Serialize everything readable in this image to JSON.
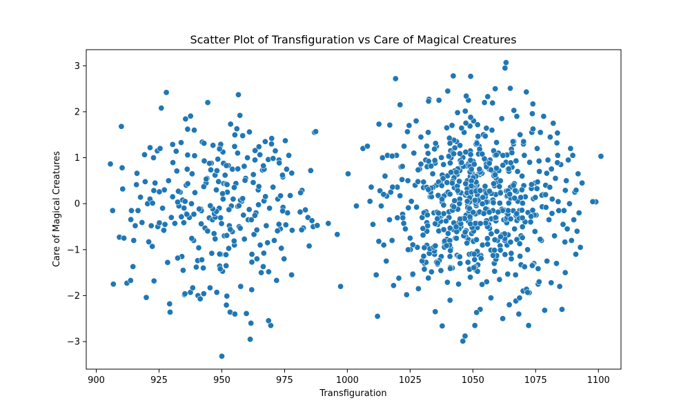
{
  "chart_data": {
    "type": "scatter",
    "title": "Scatter Plot of Transfiguration vs Care of Magical Creatures",
    "xlabel": "Transfiguration",
    "ylabel": "Care of Magical Creatures",
    "xlim": [
      896,
      1109
    ],
    "ylim": [
      -3.6,
      3.35
    ],
    "xticks": [
      900,
      925,
      950,
      975,
      1000,
      1025,
      1050,
      1075,
      1100
    ],
    "yticks": [
      -3,
      -2,
      -1,
      0,
      1,
      2,
      3
    ],
    "ytick_labels": [
      "−3",
      "−2",
      "−1",
      "0",
      "1",
      "2",
      "3"
    ],
    "grid": false,
    "legend": "none",
    "marker_color": "#1f77b4",
    "marker_edge": "#ffffff",
    "clusters": [
      {
        "count": 300,
        "x_mean": 948,
        "x_sd": 18,
        "y_mean": 0.0,
        "y_sd": 1.0
      },
      {
        "count": 700,
        "x_mean": 1052,
        "x_sd": 15,
        "y_mean": 0.0,
        "y_sd": 1.0
      }
    ],
    "points": [
      [
        906.5,
        -0.15
      ],
      [
        906.8,
        -1.75
      ],
      [
        909.2,
        -0.73
      ],
      [
        910.0,
        1.68
      ],
      [
        910.3,
        0.78
      ],
      [
        910.5,
        0.32
      ],
      [
        911.0,
        -0.75
      ],
      [
        912.2,
        -1.73
      ],
      [
        914.0,
        -0.15
      ],
      [
        914.6,
        -1.37
      ],
      [
        914.9,
        -0.8
      ],
      [
        915.5,
        -0.48
      ],
      [
        916.2,
        0.66
      ],
      [
        916.6,
        -0.15
      ],
      [
        917.6,
        0.14
      ],
      [
        918.2,
        -0.41
      ],
      [
        919.9,
        -2.04
      ],
      [
        920.4,
        0.0
      ],
      [
        920.9,
        -0.83
      ],
      [
        921.4,
        0.1
      ],
      [
        921.9,
        -0.48
      ],
      [
        922.3,
        -0.93
      ],
      [
        922.8,
        1.0
      ],
      [
        923.0,
        -1.68
      ],
      [
        923.4,
        0.45
      ],
      [
        924.3,
        1.15
      ],
      [
        924.5,
        -0.5
      ],
      [
        925.4,
        1.2
      ],
      [
        925.9,
        2.08
      ],
      [
        926.4,
        -0.1
      ],
      [
        926.9,
        -0.58
      ],
      [
        927.1,
        0.3
      ],
      [
        927.9,
        2.42
      ],
      [
        928.4,
        -1.28
      ],
      [
        928.8,
        0.5
      ],
      [
        929.2,
        -2.18
      ],
      [
        929.4,
        -2.36
      ],
      [
        929.9,
        -0.3
      ],
      [
        930.4,
        0.15
      ],
      [
        931.3,
        -0.43
      ],
      [
        931.8,
        1.14
      ],
      [
        932.1,
        0.71
      ],
      [
        932.9,
        -0.05
      ],
      [
        933.4,
        0.25
      ],
      [
        933.8,
        1.33
      ],
      [
        934.1,
        -1.15
      ],
      [
        934.6,
        -1.45
      ],
      [
        935.1,
        -1.98
      ],
      [
        935.8,
        0.4
      ],
      [
        936.2,
        0.75
      ],
      [
        937.1,
        -0.3
      ],
      [
        937.5,
        -1.93
      ],
      [
        937.9,
        0.0
      ],
      [
        938.4,
        -1.83
      ],
      [
        938.8,
        -0.8
      ],
      [
        939.0,
        1.6
      ],
      [
        939.3,
        0.24
      ],
      [
        939.8,
        -1.38
      ],
      [
        940.5,
        -2.0
      ],
      [
        940.8,
        -0.96
      ],
      [
        941.4,
        -2.07
      ],
      [
        941.7,
        -0.12
      ],
      [
        942.2,
        1.34
      ],
      [
        942.6,
        -1.4
      ],
      [
        943.0,
        0.93
      ],
      [
        943.3,
        -0.53
      ],
      [
        943.7,
        0.45
      ],
      [
        944.1,
        0.55
      ],
      [
        944.4,
        2.2
      ],
      [
        945.0,
        -0.31
      ],
      [
        945.3,
        -1.83
      ],
      [
        945.8,
        0.88
      ],
      [
        946.0,
        -1.08
      ],
      [
        946.3,
        -0.35
      ],
      [
        946.5,
        1.27
      ],
      [
        946.9,
        -0.65
      ],
      [
        947.3,
        0.62
      ],
      [
        947.8,
        0.3
      ],
      [
        948.0,
        -1.93
      ],
      [
        948.4,
        0.97
      ],
      [
        948.7,
        0.48
      ],
      [
        949.0,
        -0.1
      ],
      [
        949.4,
        1.25
      ],
      [
        949.6,
        -1.1
      ],
      [
        950.0,
        -3.32
      ],
      [
        950.3,
        -1.47
      ],
      [
        950.5,
        0.1
      ],
      [
        950.8,
        0.44
      ],
      [
        951.0,
        -0.7
      ],
      [
        951.3,
        0.62
      ],
      [
        951.7,
        -1.35
      ],
      [
        952.0,
        -2.01
      ],
      [
        952.2,
        0.25
      ],
      [
        952.6,
        0.83
      ],
      [
        953.0,
        -0.48
      ],
      [
        953.3,
        -2.36
      ],
      [
        953.5,
        1.73
      ],
      [
        953.8,
        -0.05
      ],
      [
        954.2,
        0.75
      ],
      [
        954.5,
        0.1
      ],
      [
        955.0,
        -0.9
      ],
      [
        955.2,
        -2.4
      ],
      [
        955.6,
        0.44
      ],
      [
        956.0,
        1.63
      ],
      [
        956.3,
        1.1
      ],
      [
        956.6,
        2.37
      ],
      [
        956.9,
        -0.5
      ],
      [
        957.2,
        1.92
      ],
      [
        957.5,
        -1.8
      ],
      [
        957.9,
        0.05
      ],
      [
        958.3,
        1.48
      ],
      [
        958.6,
        -0.25
      ],
      [
        959.0,
        -0.77
      ],
      [
        959.5,
        0.55
      ],
      [
        959.8,
        -2.39
      ],
      [
        960.2,
        1.0
      ],
      [
        960.5,
        -0.35
      ],
      [
        961.0,
        1.56
      ],
      [
        961.3,
        -2.95
      ],
      [
        961.6,
        -2.6
      ],
      [
        962.0,
        -1.1
      ],
      [
        962.5,
        0.46
      ],
      [
        962.8,
        -0.67
      ],
      [
        963.2,
        0.95
      ],
      [
        963.6,
        -0.2
      ],
      [
        964.0,
        -1.2
      ],
      [
        964.5,
        0.3
      ],
      [
        964.8,
        1.24
      ],
      [
        965.3,
        -0.9
      ],
      [
        965.7,
        -1.5
      ],
      [
        966.2,
        0.73
      ],
      [
        966.5,
        -1.37
      ],
      [
        966.8,
        0.06
      ],
      [
        967.3,
        1.35
      ],
      [
        967.7,
        -0.48
      ],
      [
        968.2,
        -0.85
      ],
      [
        968.5,
        0.96
      ],
      [
        969.0,
        -0.1
      ],
      [
        969.5,
        -2.65
      ],
      [
        969.8,
        1.3
      ],
      [
        970.4,
        0.36
      ],
      [
        970.9,
        -0.8
      ],
      [
        971.3,
        1.15
      ],
      [
        971.8,
        -1.67
      ],
      [
        972.3,
        0.1
      ],
      [
        972.8,
        0.95
      ],
      [
        973.3,
        -0.55
      ],
      [
        973.7,
        -0.97
      ],
      [
        974.3,
        0.58
      ],
      [
        974.8,
        -1.2
      ],
      [
        975.3,
        1.37
      ],
      [
        975.8,
        0.75
      ],
      [
        976.2,
        -0.2
      ],
      [
        976.7,
        1.05
      ],
      [
        977.3,
        0.18
      ],
      [
        977.8,
        -1.55
      ],
      [
        978.0,
        -0.58
      ],
      [
        981.2,
        -0.18
      ],
      [
        982.5,
        -0.53
      ],
      [
        984.3,
        -0.3
      ],
      [
        984.8,
        -0.92
      ],
      [
        985.4,
        0.72
      ],
      [
        985.9,
        -0.37
      ],
      [
        986.4,
        -0.5
      ],
      [
        986.9,
        1.55
      ],
      [
        987.4,
        1.57
      ],
      [
        996.0,
        -0.67
      ],
      [
        997.3,
        -1.8
      ],
      [
        1000.3,
        0.65
      ],
      [
        1003.6,
        -0.05
      ],
      [
        1006.2,
        1.2
      ],
      [
        1008.0,
        1.25
      ],
      [
        1009.0,
        0.05
      ],
      [
        1009.5,
        0.36
      ],
      [
        1010.2,
        -0.45
      ],
      [
        1011.5,
        -1.55
      ],
      [
        1012.0,
        -2.45
      ],
      [
        1012.6,
        1.73
      ],
      [
        1013.0,
        0.28
      ],
      [
        1013.5,
        -0.05
      ],
      [
        1014.0,
        1.0
      ],
      [
        1014.5,
        -0.9
      ],
      [
        1015.0,
        0.6
      ],
      [
        1015.5,
        -1.25
      ],
      [
        1016.0,
        1.05
      ],
      [
        1016.8,
        -0.35
      ],
      [
        1017.3,
        0.25
      ],
      [
        1017.8,
        -0.8
      ],
      [
        1018.4,
        -1.78
      ],
      [
        1019.2,
        2.72
      ],
      [
        1019.6,
        1.05
      ],
      [
        1020.0,
        0.35
      ],
      [
        1020.5,
        -1.62
      ],
      [
        1021.0,
        2.15
      ],
      [
        1021.4,
        0.8
      ],
      [
        1022.0,
        -0.23
      ],
      [
        1022.6,
        1.25
      ],
      [
        1023.1,
        -0.55
      ],
      [
        1023.6,
        -1.98
      ],
      [
        1024.1,
        0.5
      ],
      [
        1024.6,
        1.7
      ],
      [
        1025.0,
        -0.75
      ],
      [
        1025.5,
        0.05
      ],
      [
        1026.0,
        -1.55
      ],
      [
        1026.5,
        1.1
      ],
      [
        1027.0,
        0.4
      ],
      [
        1027.4,
        1.8
      ],
      [
        1027.9,
        -0.95
      ],
      [
        1028.3,
        -1.85
      ],
      [
        1028.8,
        0.75
      ],
      [
        1029.3,
        1.45
      ],
      [
        1029.8,
        -0.3
      ],
      [
        1030.3,
        0.35
      ],
      [
        1030.7,
        -1.3
      ],
      [
        1031.2,
        0.95
      ],
      [
        1031.7,
        -0.6
      ],
      [
        1032.2,
        1.55
      ],
      [
        1032.5,
        2.27
      ],
      [
        1033.0,
        0.15
      ],
      [
        1033.5,
        -1.05
      ],
      [
        1034.0,
        0.65
      ],
      [
        1034.5,
        -0.2
      ],
      [
        1035.0,
        -2.35
      ],
      [
        1035.5,
        1.25
      ],
      [
        1036.0,
        -0.45
      ],
      [
        1036.5,
        2.25
      ],
      [
        1037.0,
        0.48
      ],
      [
        1037.4,
        -1.15
      ],
      [
        1037.8,
        -2.66
      ],
      [
        1038.3,
        0.85
      ],
      [
        1038.7,
        -0.85
      ],
      [
        1039.2,
        0.2
      ],
      [
        1039.6,
        1.65
      ],
      [
        1040.0,
        2.45
      ],
      [
        1040.5,
        -0.3
      ],
      [
        1040.9,
        -2.1
      ],
      [
        1041.3,
        1.0
      ],
      [
        1041.8,
        -1.4
      ],
      [
        1042.2,
        2.78
      ],
      [
        1042.6,
        0.35
      ],
      [
        1043.0,
        -0.75
      ],
      [
        1043.5,
        1.35
      ],
      [
        1043.9,
        1.98
      ],
      [
        1044.3,
        -1.75
      ],
      [
        1044.8,
        0.1
      ],
      [
        1045.2,
        -0.5
      ],
      [
        1045.6,
        0.8
      ],
      [
        1046.0,
        -2.99
      ],
      [
        1046.5,
        1.55
      ],
      [
        1046.9,
        -2.88
      ],
      [
        1047.3,
        -0.25
      ],
      [
        1047.8,
        0.5
      ],
      [
        1048.2,
        2.25
      ],
      [
        1048.6,
        -1.1
      ],
      [
        1049.0,
        1.15
      ],
      [
        1049.5,
        -0.65
      ],
      [
        1049.9,
        0.05
      ],
      [
        1050.3,
        1.8
      ],
      [
        1050.8,
        -2.65
      ],
      [
        1051.2,
        -1.45
      ],
      [
        1051.6,
        0.4
      ],
      [
        1052.0,
        -0.2
      ],
      [
        1052.5,
        1.25
      ],
      [
        1052.9,
        -2.3
      ],
      [
        1053.3,
        0.7
      ],
      [
        1053.8,
        -0.9
      ],
      [
        1054.2,
        1.5
      ],
      [
        1054.6,
        2.2
      ],
      [
        1055.0,
        0.15
      ],
      [
        1055.5,
        -1.7
      ],
      [
        1055.9,
        2.33
      ],
      [
        1056.3,
        -0.45
      ],
      [
        1056.8,
        0.95
      ],
      [
        1057.2,
        -2.05
      ],
      [
        1057.6,
        1.6
      ],
      [
        1058.0,
        -0.15
      ],
      [
        1058.5,
        -1.3
      ],
      [
        1058.9,
        2.5
      ],
      [
        1059.3,
        0.55
      ],
      [
        1059.8,
        -0.8
      ],
      [
        1060.2,
        1.1
      ],
      [
        1060.6,
        -1.65
      ],
      [
        1061.0,
        0.25
      ],
      [
        1061.5,
        1.85
      ],
      [
        1061.9,
        -2.5
      ],
      [
        1062.3,
        -0.35
      ],
      [
        1062.8,
        2.95
      ],
      [
        1063.2,
        3.07
      ],
      [
        1063.6,
        -0.9
      ],
      [
        1064.0,
        0.75
      ],
      [
        1064.5,
        -2.2
      ],
      [
        1064.9,
        2.51
      ],
      [
        1065.3,
        -1.2
      ],
      [
        1065.8,
        0.4
      ],
      [
        1066.2,
        1.3
      ],
      [
        1066.6,
        -0.55
      ],
      [
        1067.0,
        -1.55
      ],
      [
        1067.5,
        1.9
      ],
      [
        1067.9,
        0.05
      ],
      [
        1068.3,
        -2.4
      ],
      [
        1068.8,
        1.5
      ],
      [
        1069.2,
        -0.7
      ],
      [
        1069.6,
        0.6
      ],
      [
        1070.0,
        -1.9
      ],
      [
        1070.5,
        1.05
      ],
      [
        1070.9,
        0.15
      ],
      [
        1071.3,
        2.43
      ],
      [
        1071.8,
        -1.0
      ],
      [
        1072.2,
        -2.65
      ],
      [
        1072.6,
        0.9
      ],
      [
        1073.0,
        -0.4
      ],
      [
        1073.5,
        1.55
      ],
      [
        1073.9,
        2.17
      ],
      [
        1074.3,
        -1.3
      ],
      [
        1074.8,
        0.45
      ],
      [
        1075.2,
        -0.25
      ],
      [
        1075.6,
        1.2
      ],
      [
        1076.0,
        -1.75
      ],
      [
        1076.5,
        0.7
      ],
      [
        1076.9,
        1.55
      ],
      [
        1077.3,
        -0.8
      ],
      [
        1077.8,
        0.2
      ],
      [
        1078.2,
        1.9
      ],
      [
        1078.6,
        -2.32
      ],
      [
        1079.0,
        0.4
      ],
      [
        1079.5,
        -1.25
      ],
      [
        1079.9,
        0.95
      ],
      [
        1080.3,
        -0.35
      ],
      [
        1080.8,
        1.45
      ],
      [
        1081.2,
        -1.72
      ],
      [
        1081.6,
        0.1
      ],
      [
        1082.0,
        1.75
      ],
      [
        1082.5,
        -0.7
      ],
      [
        1082.9,
        0.55
      ],
      [
        1083.3,
        -1.3
      ],
      [
        1083.8,
        1.05
      ],
      [
        1084.2,
        -0.15
      ],
      [
        1084.6,
        -1.8
      ],
      [
        1085.0,
        0.85
      ],
      [
        1085.5,
        -2.3
      ],
      [
        1085.9,
        -0.45
      ],
      [
        1086.3,
        -0.15
      ],
      [
        1086.8,
        -1.5
      ],
      [
        1087.2,
        0.5
      ],
      [
        1087.6,
        -0.55
      ],
      [
        1088.0,
        0.95
      ],
      [
        1088.5,
        0.0
      ],
      [
        1088.9,
        1.2
      ],
      [
        1089.3,
        -0.8
      ],
      [
        1089.8,
        1.05
      ],
      [
        1090.2,
        -0.35
      ],
      [
        1090.6,
        0.25
      ],
      [
        1091.0,
        -1.1
      ],
      [
        1091.5,
        -0.6
      ],
      [
        1091.9,
        0.65
      ],
      [
        1092.3,
        -0.2
      ],
      [
        1092.8,
        -0.95
      ],
      [
        1093.5,
        0.45
      ],
      [
        1099.0,
        0.04
      ]
    ]
  }
}
